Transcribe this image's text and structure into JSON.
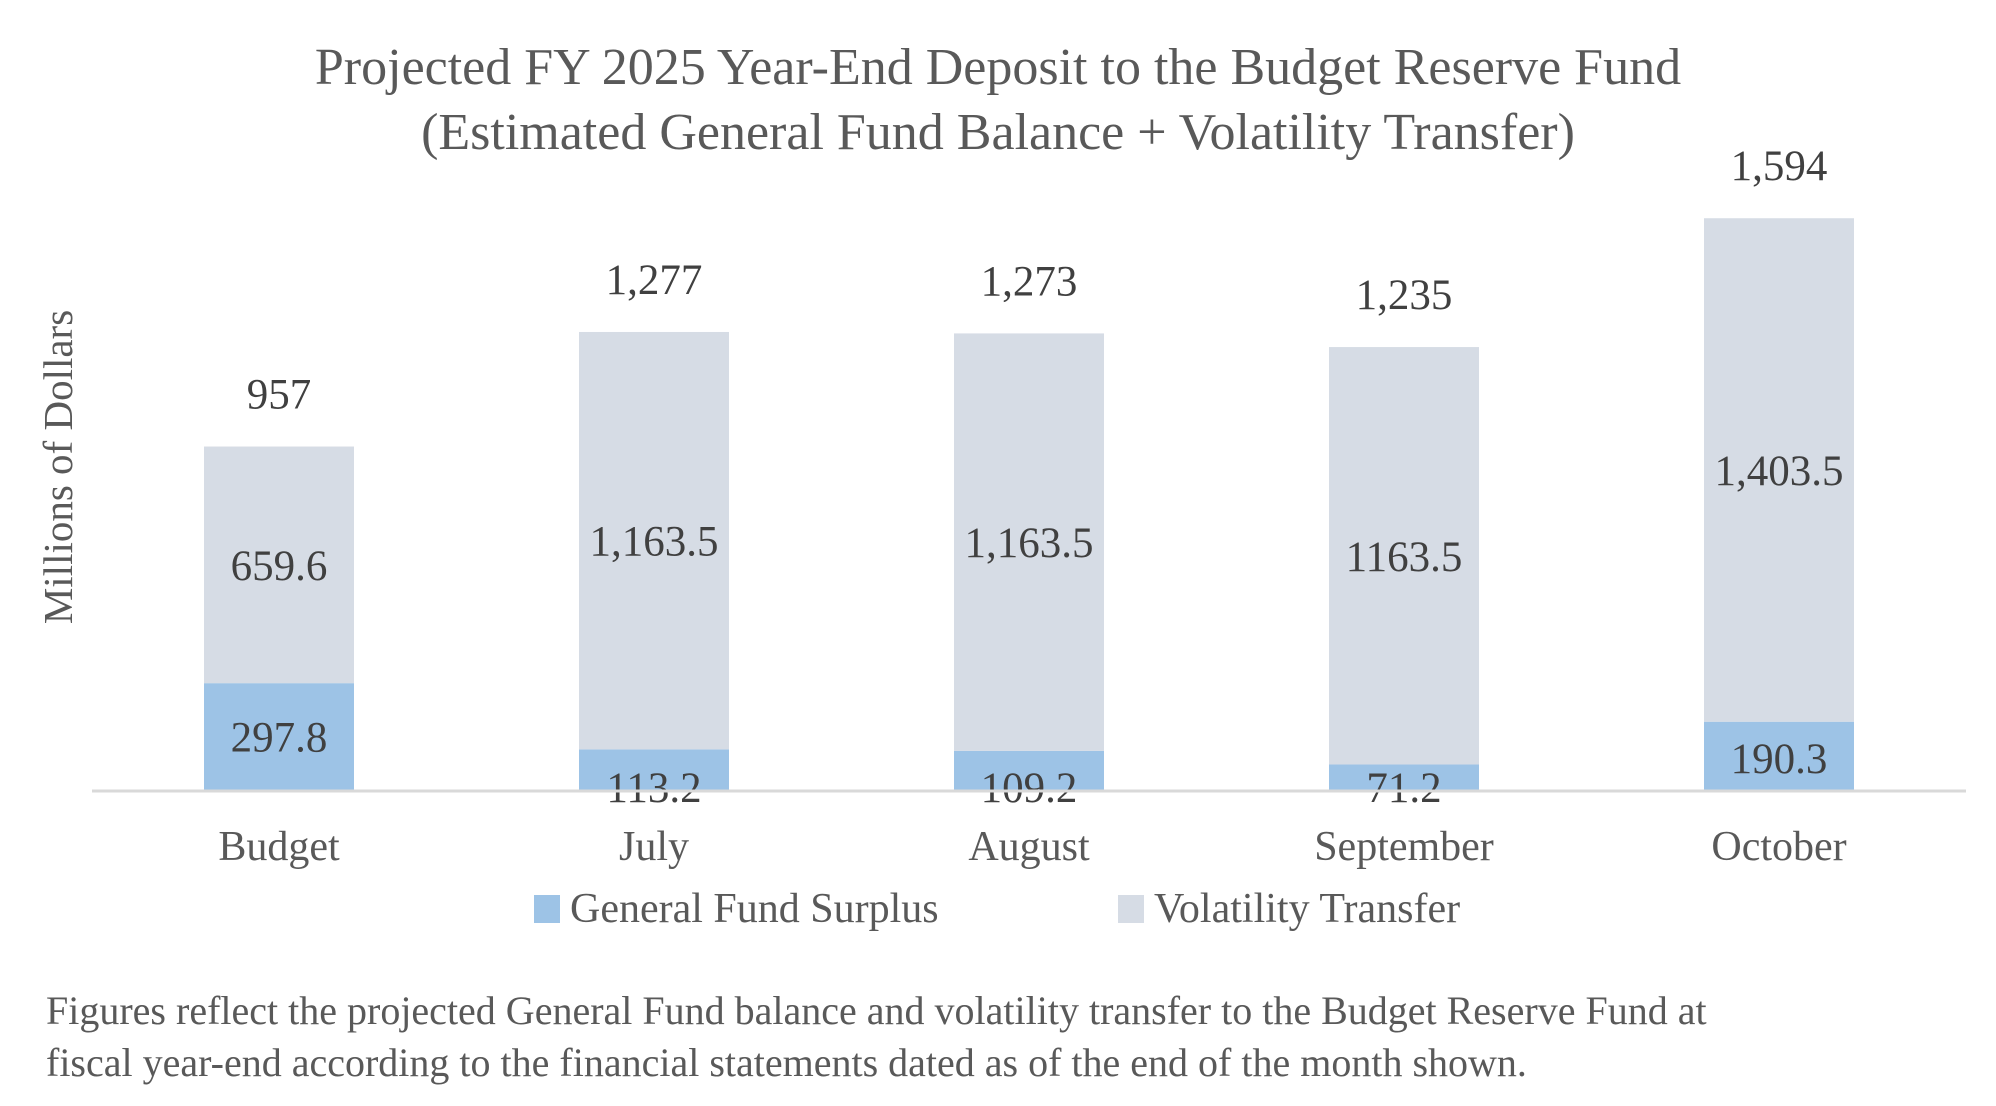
{
  "chart_data": {
    "type": "bar",
    "stacked": true,
    "title": "Projected FY 2025 Year-End Deposit to the Budget Reserve Fund",
    "subtitle": "(Estimated General Fund Balance + Volatility Transfer)",
    "xlabel": "",
    "ylabel": "Millions of Dollars",
    "categories": [
      "Budget",
      "July",
      "August",
      "September",
      "October"
    ],
    "series": [
      {
        "name": "General Fund Surplus",
        "color": "#9dc3e6",
        "values": [
          297.8,
          113.2,
          109.2,
          71.2,
          190.3
        ],
        "labels": [
          "297.8",
          "113.2",
          "109.2",
          "71.2",
          "190.3"
        ]
      },
      {
        "name": "Volatility Transfer",
        "color": "#d6dce5",
        "values": [
          659.6,
          1163.5,
          1163.5,
          1163.5,
          1403.5
        ],
        "labels": [
          "659.6",
          "1,163.5",
          "1,163.5",
          "1163.5",
          "1,403.5"
        ]
      }
    ],
    "totals": [
      957,
      1277,
      1273,
      1235,
      1594
    ],
    "total_labels": [
      "957",
      "1,277",
      "1,273",
      "1,235",
      "1,594"
    ],
    "ylim": [
      0,
      1600
    ],
    "grid": false,
    "legend_position": "bottom"
  },
  "footnote": {
    "line1": "Figures reflect the projected General Fund balance and volatility transfer to the Budget Reserve Fund at",
    "line2": "fiscal year-end according to the financial statements dated as of the end of the month shown."
  }
}
